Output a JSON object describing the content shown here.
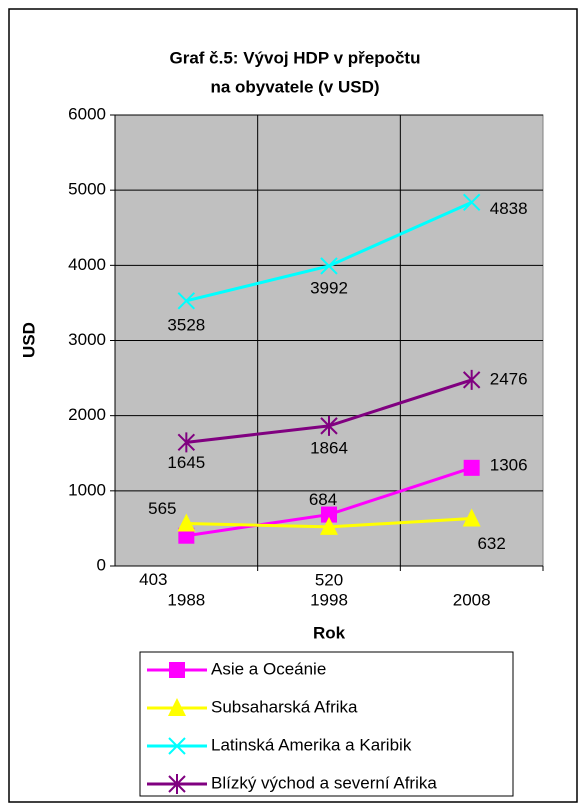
{
  "chart_data": {
    "type": "line",
    "title": [
      "Graf č.5: Vývoj HDP v přepočtu",
      "na obyvatele (v USD)"
    ],
    "x_label": "Rok",
    "y_label": "USD",
    "categories": [
      "1988",
      "1998",
      "2008"
    ],
    "series": [
      {
        "name": "Asie a Oceánie",
        "color": "#ff00ff",
        "marker": "square",
        "values": [
          403,
          684,
          1306
        ]
      },
      {
        "name": "Subsaharská Afrika",
        "color": "#ffff00",
        "marker": "triangle",
        "values": [
          565,
          520,
          632
        ]
      },
      {
        "name": "Latinská Amerika a Karibik",
        "color": "#00ffff",
        "marker": "x",
        "values": [
          3528,
          3992,
          4838
        ]
      },
      {
        "name": "Blízký východ a severní Afrika",
        "color": "#800080",
        "marker": "star",
        "values": [
          1645,
          1864,
          2476
        ]
      }
    ],
    "ylim": [
      0,
      6000
    ],
    "yticks": [
      0,
      1000,
      2000,
      3000,
      4000,
      5000,
      6000
    ],
    "grid": true
  }
}
